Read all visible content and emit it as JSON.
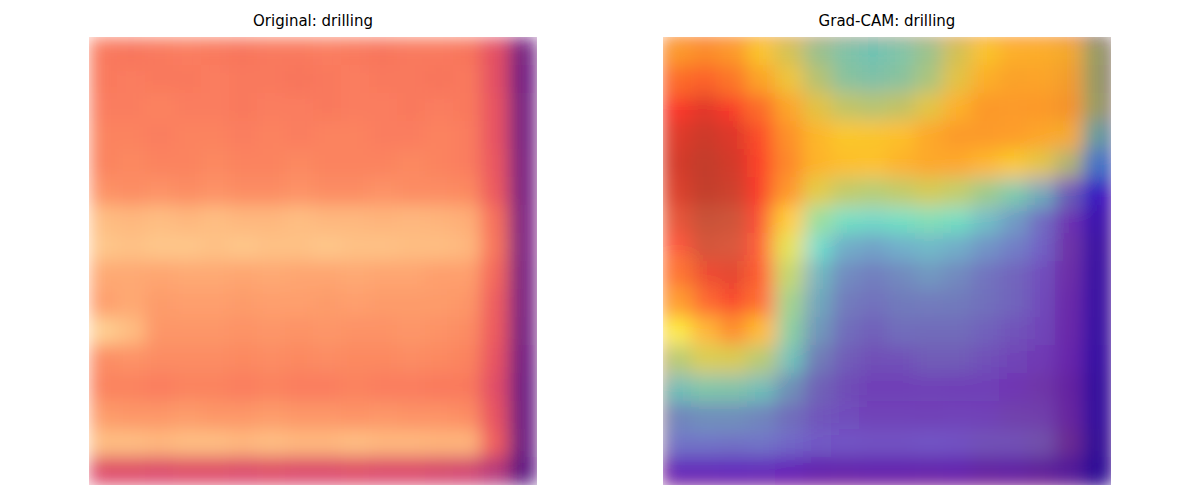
{
  "chart_data": [
    {
      "type": "heatmap",
      "title": "Original: drilling",
      "tick_labels": false,
      "zlim": [
        0,
        1
      ],
      "cells": [
        [
          0.72,
          0.71,
          0.72,
          0.73,
          0.72,
          0.71,
          0.72,
          0.72,
          0.73,
          0.72,
          0.71,
          0.72,
          0.72,
          0.71,
          0.62,
          0.34
        ],
        [
          0.72,
          0.73,
          0.72,
          0.72,
          0.73,
          0.72,
          0.72,
          0.71,
          0.72,
          0.73,
          0.72,
          0.72,
          0.71,
          0.72,
          0.62,
          0.33
        ],
        [
          0.73,
          0.73,
          0.74,
          0.73,
          0.73,
          0.72,
          0.73,
          0.73,
          0.72,
          0.73,
          0.73,
          0.72,
          0.73,
          0.72,
          0.63,
          0.34
        ],
        [
          0.74,
          0.74,
          0.73,
          0.74,
          0.74,
          0.73,
          0.74,
          0.73,
          0.74,
          0.74,
          0.73,
          0.73,
          0.74,
          0.73,
          0.63,
          0.34
        ],
        [
          0.74,
          0.75,
          0.74,
          0.74,
          0.75,
          0.74,
          0.74,
          0.75,
          0.74,
          0.74,
          0.74,
          0.75,
          0.74,
          0.73,
          0.64,
          0.35
        ],
        [
          0.77,
          0.76,
          0.77,
          0.76,
          0.77,
          0.76,
          0.76,
          0.77,
          0.76,
          0.76,
          0.77,
          0.76,
          0.76,
          0.75,
          0.65,
          0.35
        ],
        [
          0.86,
          0.85,
          0.86,
          0.85,
          0.86,
          0.85,
          0.85,
          0.86,
          0.85,
          0.85,
          0.84,
          0.85,
          0.84,
          0.83,
          0.7,
          0.36
        ],
        [
          0.88,
          0.87,
          0.88,
          0.88,
          0.87,
          0.88,
          0.87,
          0.87,
          0.88,
          0.87,
          0.87,
          0.86,
          0.86,
          0.85,
          0.71,
          0.36
        ],
        [
          0.82,
          0.82,
          0.81,
          0.82,
          0.82,
          0.81,
          0.82,
          0.81,
          0.81,
          0.82,
          0.81,
          0.81,
          0.8,
          0.8,
          0.68,
          0.35
        ],
        [
          0.8,
          0.82,
          0.79,
          0.8,
          0.8,
          0.79,
          0.8,
          0.8,
          0.79,
          0.8,
          0.79,
          0.79,
          0.79,
          0.78,
          0.66,
          0.35
        ],
        [
          0.9,
          0.86,
          0.78,
          0.78,
          0.78,
          0.77,
          0.78,
          0.77,
          0.78,
          0.77,
          0.77,
          0.78,
          0.77,
          0.76,
          0.65,
          0.34
        ],
        [
          0.76,
          0.77,
          0.76,
          0.76,
          0.76,
          0.75,
          0.76,
          0.75,
          0.76,
          0.75,
          0.75,
          0.76,
          0.75,
          0.74,
          0.63,
          0.33
        ],
        [
          0.74,
          0.74,
          0.73,
          0.74,
          0.74,
          0.73,
          0.74,
          0.73,
          0.73,
          0.74,
          0.73,
          0.73,
          0.72,
          0.72,
          0.61,
          0.32
        ],
        [
          0.79,
          0.78,
          0.78,
          0.79,
          0.78,
          0.78,
          0.79,
          0.78,
          0.78,
          0.77,
          0.78,
          0.77,
          0.77,
          0.76,
          0.63,
          0.32
        ],
        [
          0.86,
          0.86,
          0.85,
          0.86,
          0.86,
          0.85,
          0.86,
          0.85,
          0.85,
          0.86,
          0.85,
          0.85,
          0.84,
          0.84,
          0.66,
          0.32
        ],
        [
          0.6,
          0.6,
          0.59,
          0.6,
          0.6,
          0.59,
          0.6,
          0.59,
          0.59,
          0.6,
          0.59,
          0.59,
          0.58,
          0.57,
          0.5,
          0.28
        ]
      ]
    },
    {
      "type": "heatmap",
      "title": "Grad-CAM: drilling",
      "tick_labels": false,
      "zlim": [
        0,
        1
      ],
      "cells": [
        [
          0.7,
          0.72,
          0.7,
          0.62,
          0.55,
          0.45,
          0.4,
          0.38,
          0.4,
          0.45,
          0.55,
          0.62,
          0.66,
          0.66,
          0.64,
          0.55
        ],
        [
          0.78,
          0.8,
          0.76,
          0.68,
          0.6,
          0.5,
          0.42,
          0.4,
          0.42,
          0.48,
          0.58,
          0.66,
          0.68,
          0.68,
          0.66,
          0.55
        ],
        [
          0.88,
          0.92,
          0.88,
          0.78,
          0.68,
          0.58,
          0.52,
          0.5,
          0.52,
          0.58,
          0.66,
          0.7,
          0.7,
          0.7,
          0.68,
          0.55
        ],
        [
          0.93,
          0.96,
          0.93,
          0.84,
          0.72,
          0.65,
          0.62,
          0.62,
          0.64,
          0.68,
          0.7,
          0.7,
          0.7,
          0.68,
          0.64,
          0.45
        ],
        [
          0.95,
          0.98,
          0.95,
          0.86,
          0.74,
          0.66,
          0.64,
          0.64,
          0.66,
          0.68,
          0.68,
          0.66,
          0.62,
          0.58,
          0.5,
          0.3
        ],
        [
          0.94,
          0.98,
          0.96,
          0.88,
          0.72,
          0.58,
          0.52,
          0.5,
          0.52,
          0.55,
          0.52,
          0.46,
          0.4,
          0.32,
          0.22,
          0.12
        ],
        [
          0.92,
          0.97,
          0.96,
          0.88,
          0.66,
          0.45,
          0.38,
          0.36,
          0.38,
          0.4,
          0.38,
          0.32,
          0.26,
          0.18,
          0.12,
          0.08
        ],
        [
          0.88,
          0.95,
          0.94,
          0.86,
          0.58,
          0.36,
          0.28,
          0.26,
          0.28,
          0.3,
          0.28,
          0.24,
          0.2,
          0.15,
          0.1,
          0.06
        ],
        [
          0.8,
          0.9,
          0.92,
          0.84,
          0.52,
          0.32,
          0.24,
          0.22,
          0.24,
          0.26,
          0.24,
          0.2,
          0.18,
          0.14,
          0.1,
          0.06
        ],
        [
          0.72,
          0.82,
          0.88,
          0.8,
          0.46,
          0.3,
          0.22,
          0.2,
          0.22,
          0.22,
          0.22,
          0.2,
          0.18,
          0.14,
          0.1,
          0.06
        ],
        [
          0.62,
          0.7,
          0.74,
          0.66,
          0.42,
          0.28,
          0.2,
          0.18,
          0.2,
          0.2,
          0.2,
          0.18,
          0.16,
          0.14,
          0.1,
          0.06
        ],
        [
          0.5,
          0.56,
          0.56,
          0.5,
          0.36,
          0.24,
          0.18,
          0.16,
          0.16,
          0.18,
          0.18,
          0.16,
          0.14,
          0.12,
          0.1,
          0.06
        ],
        [
          0.36,
          0.4,
          0.4,
          0.36,
          0.28,
          0.2,
          0.16,
          0.14,
          0.14,
          0.14,
          0.14,
          0.14,
          0.12,
          0.1,
          0.08,
          0.05
        ],
        [
          0.24,
          0.26,
          0.26,
          0.24,
          0.2,
          0.16,
          0.14,
          0.12,
          0.12,
          0.12,
          0.12,
          0.12,
          0.1,
          0.1,
          0.08,
          0.05
        ],
        [
          0.18,
          0.18,
          0.18,
          0.18,
          0.16,
          0.14,
          0.12,
          0.12,
          0.12,
          0.12,
          0.12,
          0.1,
          0.1,
          0.08,
          0.06,
          0.04
        ],
        [
          0.14,
          0.14,
          0.14,
          0.14,
          0.12,
          0.1,
          0.1,
          0.1,
          0.1,
          0.1,
          0.1,
          0.08,
          0.08,
          0.06,
          0.05,
          0.04
        ]
      ]
    }
  ]
}
